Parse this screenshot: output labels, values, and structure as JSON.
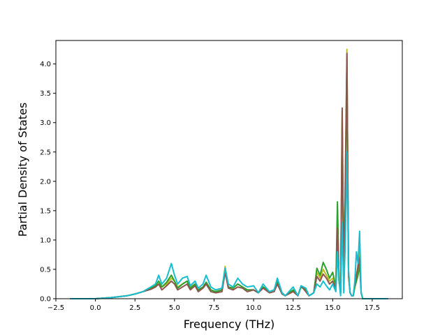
{
  "chart_data": {
    "type": "line",
    "title": "",
    "xlabel": "Frequency (THz)",
    "ylabel": "Partial Density of States",
    "xlim": [
      -2.5,
      19.4
    ],
    "ylim": [
      0,
      4.4
    ],
    "x_ticks": [
      "−2.5",
      "0.0",
      "2.5",
      "5.0",
      "7.5",
      "10.0",
      "12.5",
      "15.0",
      "17.5"
    ],
    "x_tick_values": [
      -2.5,
      0,
      2.5,
      5,
      7.5,
      10,
      12.5,
      15,
      17.5
    ],
    "y_ticks": [
      "0.0",
      "0.5",
      "1.0",
      "1.5",
      "2.0",
      "2.5",
      "3.0",
      "3.5",
      "4.0"
    ],
    "y_tick_values": [
      0,
      0.5,
      1,
      1.5,
      2,
      2.5,
      3,
      3.5,
      4
    ],
    "grid": false,
    "legend": "none",
    "series": [
      {
        "color": "#bcbd22",
        "x": [
          -1.6,
          0.0,
          1.0,
          2.0,
          2.5,
          3.0,
          3.5,
          3.8,
          4.0,
          4.2,
          4.5,
          4.8,
          5.0,
          5.2,
          5.5,
          5.8,
          6.0,
          6.3,
          6.5,
          6.8,
          7.0,
          7.3,
          7.6,
          8.0,
          8.2,
          8.4,
          8.7,
          9.0,
          9.3,
          9.6,
          10.0,
          10.3,
          10.6,
          11.0,
          11.3,
          11.5,
          11.8,
          12.0,
          12.5,
          12.8,
          13.0,
          13.3,
          13.5,
          13.8,
          14.0,
          14.2,
          14.4,
          14.6,
          14.8,
          15.0,
          15.2,
          15.3,
          15.4,
          15.5,
          15.6,
          15.7,
          15.8,
          15.9,
          16.0,
          16.1,
          16.2,
          16.3,
          16.4,
          16.5,
          16.6,
          16.7,
          16.8,
          16.9,
          17.0,
          18.5
        ],
        "y": [
          0.0,
          0.0,
          0.02,
          0.05,
          0.08,
          0.12,
          0.18,
          0.22,
          0.3,
          0.2,
          0.25,
          0.35,
          0.3,
          0.2,
          0.25,
          0.3,
          0.2,
          0.25,
          0.15,
          0.2,
          0.28,
          0.15,
          0.12,
          0.15,
          0.55,
          0.2,
          0.18,
          0.25,
          0.2,
          0.15,
          0.15,
          0.1,
          0.2,
          0.12,
          0.15,
          0.3,
          0.1,
          0.05,
          0.15,
          0.05,
          0.2,
          0.15,
          0.05,
          0.1,
          0.45,
          0.35,
          0.5,
          0.4,
          0.3,
          0.35,
          0.2,
          1.5,
          0.3,
          0.1,
          3.2,
          0.15,
          2.0,
          4.25,
          0.4,
          0.1,
          0.05,
          0.05,
          0.2,
          0.3,
          0.6,
          0.8,
          0.1,
          0.0,
          0.0,
          0.0
        ]
      },
      {
        "color": "#2ca02c",
        "x": [
          -1.6,
          0.0,
          1.0,
          2.0,
          2.5,
          3.0,
          3.5,
          3.8,
          4.0,
          4.2,
          4.5,
          4.8,
          5.0,
          5.2,
          5.5,
          5.8,
          6.0,
          6.3,
          6.5,
          6.8,
          7.0,
          7.3,
          7.6,
          8.0,
          8.2,
          8.4,
          8.7,
          9.0,
          9.3,
          9.6,
          10.0,
          10.3,
          10.6,
          11.0,
          11.3,
          11.5,
          11.8,
          12.0,
          12.5,
          12.8,
          13.0,
          13.3,
          13.5,
          13.8,
          14.0,
          14.2,
          14.4,
          14.6,
          14.8,
          15.0,
          15.2,
          15.3,
          15.4,
          15.5,
          15.6,
          15.7,
          15.8,
          15.9,
          16.0,
          16.1,
          16.2,
          16.3,
          16.4,
          16.5,
          16.6,
          16.7,
          16.8,
          16.9,
          17.0,
          18.5
        ],
        "y": [
          0.0,
          0.0,
          0.02,
          0.05,
          0.08,
          0.12,
          0.18,
          0.22,
          0.3,
          0.2,
          0.28,
          0.4,
          0.3,
          0.18,
          0.25,
          0.3,
          0.18,
          0.25,
          0.15,
          0.2,
          0.28,
          0.15,
          0.12,
          0.15,
          0.5,
          0.2,
          0.18,
          0.25,
          0.2,
          0.15,
          0.15,
          0.1,
          0.2,
          0.12,
          0.15,
          0.3,
          0.1,
          0.05,
          0.15,
          0.05,
          0.2,
          0.15,
          0.05,
          0.1,
          0.52,
          0.4,
          0.62,
          0.5,
          0.35,
          0.45,
          0.2,
          1.65,
          0.3,
          0.1,
          3.0,
          0.15,
          1.8,
          4.1,
          0.4,
          0.1,
          0.05,
          0.05,
          0.2,
          0.3,
          0.4,
          0.6,
          0.1,
          0.0,
          0.0,
          0.0
        ]
      },
      {
        "color": "#8c564b",
        "x": [
          -1.6,
          0.0,
          1.0,
          2.0,
          2.5,
          3.0,
          3.5,
          3.8,
          4.0,
          4.2,
          4.5,
          4.8,
          5.0,
          5.2,
          5.5,
          5.8,
          6.0,
          6.3,
          6.5,
          6.8,
          7.0,
          7.3,
          7.6,
          8.0,
          8.2,
          8.4,
          8.7,
          9.0,
          9.3,
          9.6,
          10.0,
          10.3,
          10.6,
          11.0,
          11.3,
          11.5,
          11.8,
          12.0,
          12.5,
          12.8,
          13.0,
          13.3,
          13.5,
          13.8,
          14.0,
          14.2,
          14.4,
          14.6,
          14.8,
          15.0,
          15.2,
          15.3,
          15.4,
          15.5,
          15.6,
          15.7,
          15.8,
          15.9,
          16.0,
          16.1,
          16.2,
          16.3,
          16.4,
          16.5,
          16.6,
          16.7,
          16.8,
          16.9,
          17.0,
          18.5
        ],
        "y": [
          0.0,
          0.0,
          0.02,
          0.05,
          0.08,
          0.12,
          0.16,
          0.2,
          0.25,
          0.15,
          0.22,
          0.3,
          0.25,
          0.15,
          0.2,
          0.25,
          0.15,
          0.22,
          0.12,
          0.18,
          0.25,
          0.12,
          0.1,
          0.12,
          0.45,
          0.18,
          0.15,
          0.2,
          0.18,
          0.12,
          0.15,
          0.1,
          0.18,
          0.1,
          0.12,
          0.25,
          0.08,
          0.05,
          0.12,
          0.05,
          0.22,
          0.12,
          0.05,
          0.1,
          0.38,
          0.3,
          0.42,
          0.35,
          0.25,
          0.3,
          0.15,
          1.2,
          0.3,
          0.1,
          3.25,
          0.15,
          2.1,
          4.18,
          0.4,
          0.1,
          0.05,
          0.05,
          0.25,
          0.4,
          0.55,
          0.7,
          0.1,
          0.0,
          0.0,
          0.0
        ]
      },
      {
        "color": "#17becf",
        "x": [
          -1.6,
          0.0,
          1.0,
          2.0,
          2.5,
          3.0,
          3.5,
          3.8,
          4.0,
          4.2,
          4.5,
          4.8,
          5.0,
          5.2,
          5.5,
          5.8,
          6.0,
          6.3,
          6.5,
          6.8,
          7.0,
          7.3,
          7.6,
          8.0,
          8.2,
          8.4,
          8.7,
          9.0,
          9.3,
          9.6,
          10.0,
          10.3,
          10.6,
          11.0,
          11.3,
          11.5,
          11.8,
          12.0,
          12.5,
          12.8,
          13.0,
          13.3,
          13.5,
          13.8,
          14.0,
          14.2,
          14.4,
          14.6,
          14.8,
          15.0,
          15.2,
          15.3,
          15.4,
          15.5,
          15.6,
          15.7,
          15.8,
          15.9,
          16.0,
          16.1,
          16.2,
          16.3,
          16.4,
          16.5,
          16.6,
          16.7,
          16.8,
          16.9,
          17.0,
          18.5
        ],
        "y": [
          0.0,
          0.0,
          0.02,
          0.05,
          0.08,
          0.12,
          0.2,
          0.25,
          0.4,
          0.25,
          0.35,
          0.6,
          0.4,
          0.25,
          0.35,
          0.38,
          0.22,
          0.3,
          0.18,
          0.25,
          0.4,
          0.2,
          0.15,
          0.18,
          0.52,
          0.25,
          0.2,
          0.35,
          0.25,
          0.2,
          0.22,
          0.1,
          0.25,
          0.12,
          0.15,
          0.35,
          0.1,
          0.05,
          0.2,
          0.05,
          0.22,
          0.18,
          0.05,
          0.1,
          0.25,
          0.2,
          0.3,
          0.22,
          0.15,
          0.25,
          0.12,
          0.8,
          0.3,
          0.05,
          1.3,
          0.1,
          1.0,
          2.5,
          0.5,
          0.1,
          0.05,
          0.05,
          0.3,
          0.8,
          0.6,
          1.15,
          0.1,
          0.0,
          0.0,
          0.0
        ]
      }
    ]
  }
}
